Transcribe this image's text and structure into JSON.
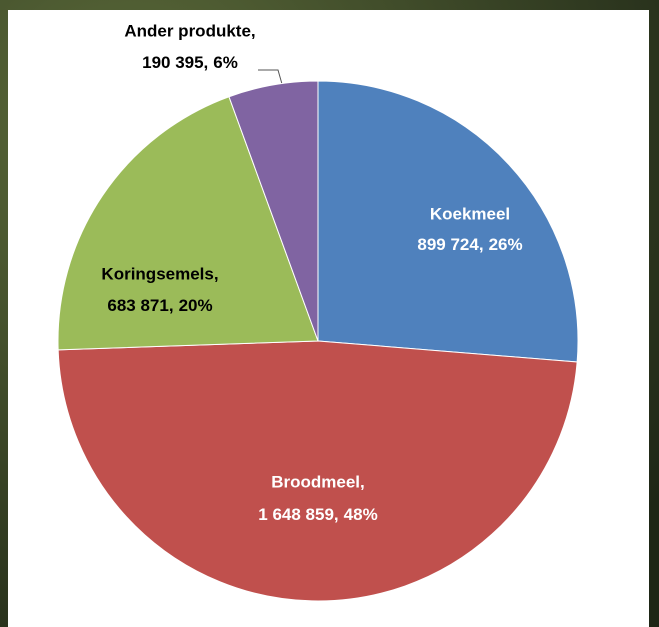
{
  "chart_data": {
    "type": "pie",
    "categories": [
      "Koekmeel",
      "Broodmeel,",
      "Koringsemels,",
      "Ander produkte,"
    ],
    "values": [
      899724,
      1648859,
      683871,
      190395
    ],
    "value_labels": [
      "899 724,",
      "1 648 859,",
      "683 871,",
      "190 395,"
    ],
    "percent_labels": [
      "26%",
      "48%",
      "20%",
      "6%"
    ],
    "colors": [
      "#4f81bd",
      "#c0504d",
      "#9bbb59",
      "#8064a2"
    ]
  }
}
